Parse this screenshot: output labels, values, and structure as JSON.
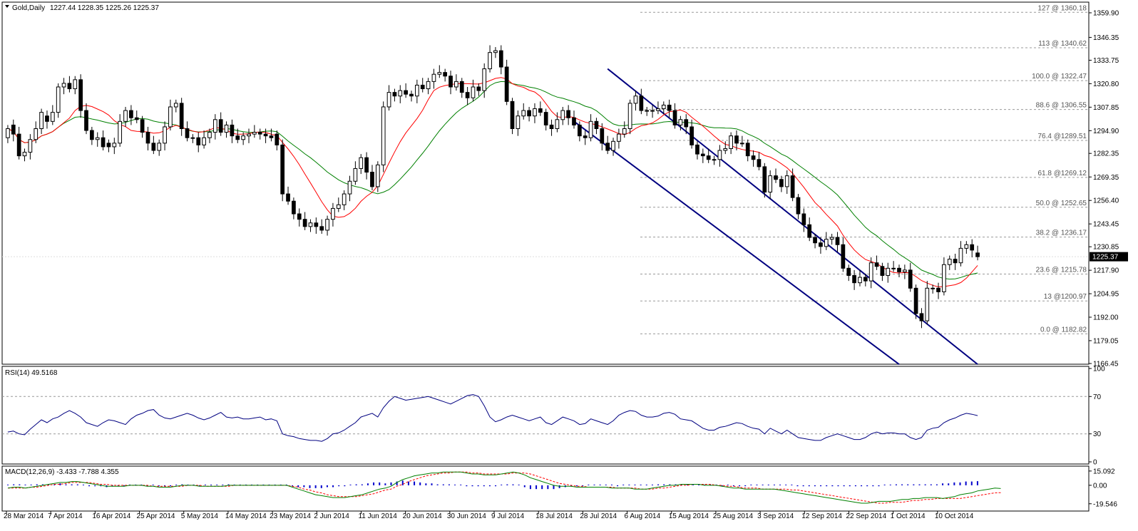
{
  "main_header": {
    "symbol_label": "Gold,Daily",
    "ohlc_text": "1227.44 1228.35 1225.26 1225.37"
  },
  "rsi_header": {
    "label": "RSI(14) 49.5168"
  },
  "macd_header": {
    "label": "MACD(12,26,9) -3.433 -7.788 4.355"
  },
  "current_price_label": "1225.37",
  "colors": {
    "background": "#ffffff",
    "bull_candle": "#ffffff",
    "bear_candle": "#000000",
    "candle_outline": "#000000",
    "ma_fast": "#ff0000",
    "ma_slow": "#008000",
    "ma_cross_marker": "#ffff00",
    "channel": "#000080",
    "rsi_line": "#000080",
    "macd_hist": "#0000cc",
    "macd_signal": "#ff0000",
    "macd_line": "#008000",
    "grid_dash": "#999999",
    "current_price_bg": "#000000"
  },
  "chart_data": [
    {
      "type": "candlestick",
      "title": "Gold,Daily",
      "ylim": [
        1166.45,
        1365.0
      ],
      "y_ticks": [
        "1359.90",
        "1346.35",
        "1333.75",
        "1320.80",
        "1307.85",
        "1294.90",
        "1282.35",
        "1269.35",
        "1256.40",
        "1243.45",
        "1230.85",
        "1217.90",
        "1204.95",
        "1192.00",
        "1179.05",
        "1166.45"
      ],
      "x_tick_labels": [
        "28 Mar 2014",
        "7 Apr 2014",
        "16 Apr 2014",
        "25 Apr 2014",
        "5 May 2014",
        "14 May 2014",
        "23 May 2014",
        "2 Jun 2014",
        "11 Jun 2014",
        "20 Jun 2014",
        "30 Jun 2014",
        "9 Jul 2014",
        "18 Jul 2014",
        "28 Jul 2014",
        "6 Aug 2014",
        "15 Aug 2014",
        "25 Aug 2014",
        "3 Sep 2014",
        "12 Sep 2014",
        "22 Sep 2014",
        "1 Oct 2014",
        "10 Oct 2014"
      ],
      "fibonacci_levels": [
        {
          "label": "127 @ 1360.18",
          "price": 1360.18
        },
        {
          "label": "113 @ 1340.62",
          "price": 1340.62
        },
        {
          "label": "100.0 @ 1322.47",
          "price": 1322.47
        },
        {
          "label": "88.6 @ 1306.55",
          "price": 1306.55
        },
        {
          "label": "76.4 @1289.51",
          "price": 1289.51
        },
        {
          "label": "61.8 @1269.12",
          "price": 1269.12
        },
        {
          "label": "50.0 @ 1252.65",
          "price": 1252.65
        },
        {
          "label": "38.2 @ 1236.17",
          "price": 1236.17
        },
        {
          "label": "23.6 @ 1215.78",
          "price": 1215.78
        },
        {
          "label": "13 @1200.97",
          "price": 1200.97
        },
        {
          "label": "0.0 @ 1182.82",
          "price": 1182.82
        }
      ],
      "closes": [
        1296,
        1293,
        1281,
        1283,
        1290,
        1296,
        1305,
        1300,
        1305,
        1319,
        1321,
        1318,
        1323,
        1306,
        1295,
        1290,
        1291,
        1286,
        1286,
        1288,
        1300,
        1306,
        1302,
        1301,
        1294,
        1288,
        1284,
        1288,
        1297,
        1308,
        1310,
        1296,
        1291,
        1291,
        1287,
        1291,
        1294,
        1301,
        1294,
        1298,
        1292,
        1290,
        1292,
        1293,
        1294,
        1293,
        1292,
        1291,
        1287,
        1260,
        1256,
        1249,
        1246,
        1242,
        1244,
        1242,
        1240,
        1246,
        1252,
        1254,
        1260,
        1267,
        1274,
        1280,
        1272,
        1264,
        1276,
        1308,
        1316,
        1314,
        1317,
        1315,
        1314,
        1320,
        1318,
        1322,
        1326,
        1327,
        1325,
        1319,
        1322,
        1316,
        1313,
        1319,
        1317,
        1329,
        1338,
        1339,
        1330,
        1311,
        1296,
        1303,
        1306,
        1303,
        1307,
        1305,
        1298,
        1296,
        1301,
        1306,
        1302,
        1298,
        1292,
        1291,
        1300,
        1296,
        1288,
        1284,
        1289,
        1293,
        1296,
        1310,
        1314,
        1306,
        1306,
        1306,
        1307,
        1309,
        1306,
        1298,
        1301,
        1297,
        1287,
        1282,
        1281,
        1279,
        1279,
        1284,
        1285,
        1292,
        1288,
        1288,
        1281,
        1279,
        1275,
        1261,
        1270,
        1268,
        1264,
        1270,
        1258,
        1249,
        1243,
        1236,
        1233,
        1231,
        1235,
        1236,
        1232,
        1219,
        1215,
        1211,
        1214,
        1212,
        1222,
        1220,
        1215,
        1219,
        1219,
        1217,
        1218,
        1208,
        1194,
        1190,
        1208,
        1208,
        1206,
        1221,
        1224,
        1222,
        1230,
        1232,
        1229,
        1225.37
      ],
      "opens": [
        1291,
        1298,
        1293,
        1281,
        1283,
        1290,
        1296,
        1303,
        1300,
        1305,
        1319,
        1321,
        1318,
        1323,
        1306,
        1295,
        1290,
        1291,
        1288,
        1286,
        1288,
        1300,
        1306,
        1302,
        1301,
        1294,
        1288,
        1284,
        1288,
        1297,
        1308,
        1310,
        1296,
        1291,
        1291,
        1287,
        1291,
        1294,
        1301,
        1294,
        1298,
        1292,
        1290,
        1292,
        1293,
        1294,
        1293,
        1292,
        1293,
        1287,
        1260,
        1256,
        1249,
        1246,
        1242,
        1244,
        1242,
        1240,
        1246,
        1252,
        1254,
        1260,
        1267,
        1274,
        1280,
        1272,
        1264,
        1276,
        1308,
        1316,
        1314,
        1317,
        1315,
        1314,
        1320,
        1318,
        1322,
        1326,
        1327,
        1325,
        1319,
        1322,
        1316,
        1313,
        1319,
        1317,
        1329,
        1338,
        1339,
        1330,
        1311,
        1296,
        1303,
        1306,
        1303,
        1307,
        1305,
        1298,
        1296,
        1301,
        1306,
        1302,
        1298,
        1292,
        1291,
        1300,
        1296,
        1288,
        1284,
        1289,
        1293,
        1296,
        1310,
        1314,
        1306,
        1306,
        1306,
        1307,
        1309,
        1306,
        1298,
        1301,
        1297,
        1287,
        1282,
        1281,
        1279,
        1279,
        1284,
        1285,
        1292,
        1288,
        1288,
        1281,
        1279,
        1275,
        1261,
        1270,
        1268,
        1264,
        1270,
        1258,
        1249,
        1243,
        1236,
        1233,
        1231,
        1235,
        1236,
        1232,
        1219,
        1215,
        1211,
        1214,
        1212,
        1222,
        1220,
        1215,
        1219,
        1219,
        1217,
        1218,
        1208,
        1194,
        1190,
        1208,
        1208,
        1206,
        1221,
        1224,
        1222,
        1230,
        1232,
        1227.44
      ],
      "channel": {
        "upper": [
          {
            "bar": 107,
            "price": 1329
          },
          {
            "bar": 173,
            "price": 1166
          }
        ],
        "lower": [
          {
            "bar": 101,
            "price": 1300
          },
          {
            "bar": 159,
            "price": 1166
          }
        ]
      }
    },
    {
      "type": "line",
      "title": "RSI(14) 49.5168",
      "ylim": [
        0,
        100
      ],
      "y_ticks": [
        "100",
        "70",
        "30",
        "0"
      ],
      "levels": [
        70,
        30
      ],
      "values": [
        32,
        33,
        30,
        29,
        35,
        40,
        45,
        42,
        46,
        48,
        52,
        55,
        52,
        48,
        42,
        40,
        38,
        42,
        45,
        44,
        42,
        40,
        46,
        50,
        52,
        55,
        56,
        50,
        47,
        46,
        48,
        50,
        52,
        50,
        47,
        45,
        47,
        50,
        53,
        48,
        47,
        48,
        46,
        46,
        47,
        48,
        45,
        46,
        44,
        30,
        28,
        27,
        25,
        24,
        23,
        23,
        22,
        25,
        30,
        31,
        34,
        38,
        42,
        48,
        50,
        52,
        48,
        58,
        65,
        70,
        68,
        66,
        67,
        68,
        69,
        70,
        68,
        66,
        64,
        62,
        65,
        68,
        71,
        72,
        70,
        60,
        48,
        43,
        45,
        48,
        50,
        48,
        46,
        44,
        46,
        48,
        42,
        40,
        44,
        48,
        46,
        44,
        40,
        41,
        46,
        44,
        42,
        40,
        44,
        50,
        53,
        55,
        54,
        50,
        48,
        48,
        49,
        52,
        53,
        51,
        46,
        45,
        44,
        40,
        36,
        34,
        34,
        37,
        38,
        40,
        42,
        41,
        38,
        36,
        35,
        30,
        36,
        33,
        30,
        34,
        30,
        26,
        25,
        24,
        23,
        23,
        26,
        28,
        30,
        28,
        26,
        24,
        24,
        26,
        30,
        32,
        30,
        31,
        31,
        30,
        30,
        26,
        24,
        26,
        34,
        36,
        37,
        42,
        45,
        47,
        50,
        52,
        51,
        49.5168
      ]
    },
    {
      "type": "bar",
      "title": "MACD(12,26,9) -3.433 -7.788 4.355",
      "ylim": [
        -25,
        18
      ],
      "y_ticks": [
        "15.092",
        "0.00",
        "-19.546"
      ],
      "series": [
        {
          "name": "MACD",
          "values": [
            -3,
            -2,
            -2,
            -3,
            -2,
            -1,
            0,
            1,
            2,
            3,
            3,
            4,
            4,
            3,
            2,
            1,
            0,
            -1,
            -1,
            -1,
            -1,
            0,
            0,
            0,
            -1,
            -1,
            -2,
            -2,
            -2,
            -1,
            0,
            0,
            0,
            -1,
            -1,
            -1,
            -1,
            -1,
            0,
            0,
            0,
            0,
            0,
            0,
            0,
            0,
            0,
            0,
            0,
            -2,
            -4,
            -6,
            -8,
            -10,
            -11,
            -12,
            -13,
            -13,
            -13,
            -12,
            -11,
            -10,
            -8,
            -6,
            -4,
            -3,
            -1,
            3,
            6,
            8,
            10,
            11,
            12,
            13,
            13,
            14,
            14,
            14,
            14,
            13,
            12,
            12,
            11,
            11,
            11,
            12,
            13,
            14,
            13,
            11,
            8,
            6,
            4,
            2,
            0,
            -1,
            -1,
            -1,
            -2,
            -2,
            -2,
            -2,
            -2,
            -2,
            -3,
            -3,
            -3,
            -3,
            -4,
            -4,
            -4,
            -3,
            -2,
            -1,
            0,
            0,
            1,
            1,
            1,
            1,
            0,
            0,
            0,
            -1,
            -2,
            -3,
            -3,
            -4,
            -4,
            -4,
            -4,
            -4,
            -4,
            -5,
            -6,
            -7,
            -8,
            -9,
            -10,
            -11,
            -12,
            -13,
            -14,
            -15,
            -16,
            -17,
            -18,
            -19,
            -19,
            -18,
            -17,
            -17,
            -17,
            -16,
            -15,
            -15,
            -14,
            -14,
            -13,
            -13,
            -13,
            -14,
            -13,
            -12,
            -10,
            -9,
            -8,
            -6,
            -5,
            -4,
            -3,
            -3.433
          ]
        },
        {
          "name": "Signal",
          "values": [
            -3,
            -3,
            -3,
            -3,
            -2,
            -2,
            -1,
            0,
            1,
            1,
            2,
            3,
            3,
            3,
            3,
            2,
            1,
            1,
            0,
            0,
            0,
            0,
            0,
            0,
            0,
            -1,
            -1,
            -1,
            -1,
            -1,
            -1,
            0,
            0,
            0,
            -1,
            -1,
            -1,
            -1,
            -1,
            0,
            0,
            0,
            0,
            0,
            0,
            0,
            0,
            0,
            0,
            -1,
            -2,
            -4,
            -5,
            -7,
            -8,
            -10,
            -11,
            -12,
            -12,
            -12,
            -12,
            -11,
            -10,
            -9,
            -7,
            -5,
            -4,
            -1,
            1,
            4,
            6,
            8,
            10,
            11,
            12,
            13,
            13,
            14,
            14,
            14,
            13,
            13,
            12,
            12,
            12,
            12,
            12,
            13,
            13,
            13,
            12,
            10,
            8,
            6,
            4,
            2,
            1,
            0,
            -1,
            -1,
            -2,
            -2,
            -2,
            -2,
            -2,
            -3,
            -3,
            -3,
            -3,
            -4,
            -4,
            -4,
            -3,
            -3,
            -2,
            -1,
            0,
            0,
            1,
            1,
            1,
            1,
            0,
            0,
            -1,
            -1,
            -2,
            -3,
            -3,
            -3,
            -4,
            -4,
            -4,
            -4,
            -4,
            -5,
            -5,
            -6,
            -7,
            -8,
            -9,
            -10,
            -11,
            -12,
            -13,
            -14,
            -15,
            -16,
            -17,
            -18,
            -19,
            -19,
            -18,
            -18,
            -18,
            -17,
            -16,
            -16,
            -15,
            -15,
            -14,
            -14,
            -14,
            -14,
            -14,
            -13,
            -12,
            -11,
            -10,
            -9,
            -8,
            -7.788
          ]
        },
        {
          "name": "Histogram",
          "values": [
            0,
            1,
            1,
            0,
            0,
            1,
            1,
            1,
            1,
            2,
            1,
            1,
            1,
            0,
            -1,
            -1,
            -1,
            -2,
            -1,
            -1,
            -1,
            0,
            0,
            0,
            -1,
            0,
            -1,
            -1,
            -1,
            0,
            1,
            0,
            0,
            -1,
            0,
            0,
            0,
            0,
            1,
            0,
            0,
            0,
            0,
            0,
            0,
            0,
            0,
            0,
            0,
            -1,
            -2,
            -2,
            -3,
            -3,
            -3,
            -2,
            -2,
            -1,
            -1,
            0,
            1,
            1,
            2,
            3,
            3,
            2,
            3,
            4,
            5,
            4,
            4,
            3,
            2,
            2,
            1,
            1,
            1,
            0,
            0,
            -1,
            -1,
            -1,
            -1,
            -1,
            -1,
            0,
            1,
            1,
            0,
            -2,
            -4,
            -4,
            -4,
            -4,
            -4,
            -3,
            -2,
            -1,
            -1,
            -1,
            0,
            0,
            0,
            0,
            0,
            -1,
            0,
            0,
            0,
            0,
            0,
            0,
            1,
            1,
            1,
            1,
            0,
            0,
            0,
            0,
            0,
            0,
            0,
            -1,
            0,
            -1,
            -1,
            -1,
            0,
            0,
            0,
            0,
            0,
            0,
            0,
            0,
            -1,
            -1,
            -1,
            -1,
            -1,
            -1,
            -1,
            -1,
            -1,
            -1,
            -1,
            -1,
            -1,
            -1,
            -1,
            0,
            0,
            1,
            1,
            1,
            1,
            1,
            1,
            1,
            1,
            2,
            2,
            3,
            3,
            4,
            4,
            4.355
          ]
        }
      ]
    }
  ]
}
